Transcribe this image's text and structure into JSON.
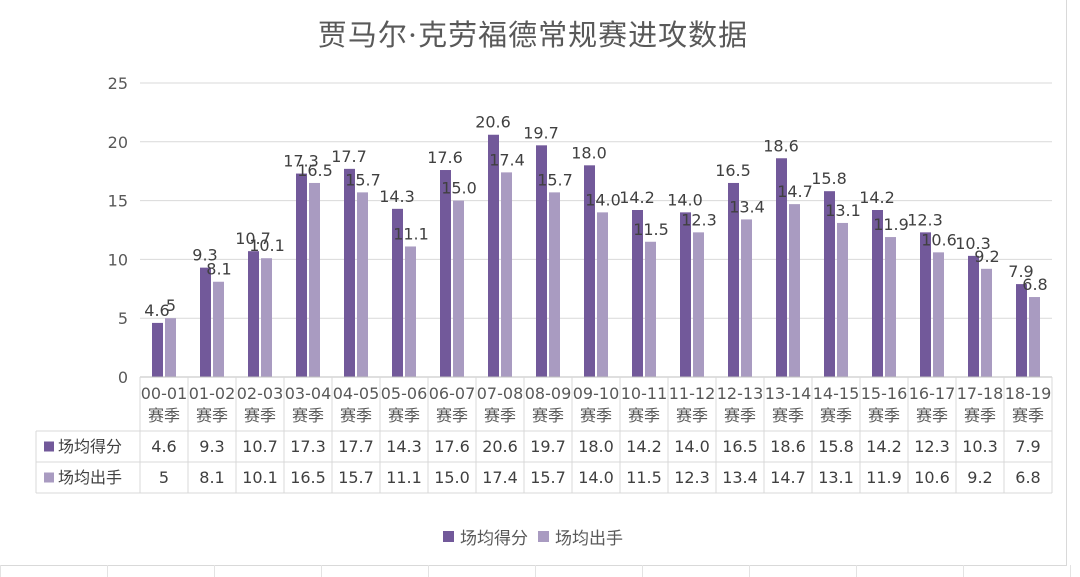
{
  "chart_data": {
    "type": "bar",
    "title": "贾马尔·克劳福德常规赛进攻数据",
    "categories": [
      [
        "00-01",
        "赛季"
      ],
      [
        "01-02",
        "赛季"
      ],
      [
        "02-03",
        "赛季"
      ],
      [
        "03-04",
        "赛季"
      ],
      [
        "04-05",
        "赛季"
      ],
      [
        "05-06",
        "赛季"
      ],
      [
        "06-07",
        "赛季"
      ],
      [
        "07-08",
        "赛季"
      ],
      [
        "08-09",
        "赛季"
      ],
      [
        "09-10",
        "赛季"
      ],
      [
        "10-11",
        "赛季"
      ],
      [
        "11-12",
        "赛季"
      ],
      [
        "12-13",
        "赛季"
      ],
      [
        "13-14",
        "赛季"
      ],
      [
        "14-15",
        "赛季"
      ],
      [
        "15-16",
        "赛季"
      ],
      [
        "16-17",
        "赛季"
      ],
      [
        "17-18",
        "赛季"
      ],
      [
        "18-19",
        "赛季"
      ]
    ],
    "series": [
      {
        "name": "场均得分",
        "color": "#72599a",
        "values": [
          4.6,
          9.3,
          10.7,
          17.3,
          17.7,
          14.3,
          17.6,
          20.6,
          19.7,
          18.0,
          14.2,
          14.0,
          16.5,
          18.6,
          15.8,
          14.2,
          12.3,
          10.3,
          7.9
        ],
        "labels": [
          "4.6",
          "9.3",
          "10.7",
          "17.3",
          "17.7",
          "14.3",
          "17.6",
          "20.6",
          "19.7",
          "18.0",
          "14.2",
          "14.0",
          "16.5",
          "18.6",
          "15.8",
          "14.2",
          "12.3",
          "10.3",
          "7.9"
        ]
      },
      {
        "name": "场均出手",
        "color": "#a99bc1",
        "values": [
          5,
          8.1,
          10.1,
          16.5,
          15.7,
          11.1,
          15.0,
          17.4,
          15.7,
          14.0,
          11.5,
          12.3,
          13.4,
          14.7,
          13.1,
          11.9,
          10.6,
          9.2,
          6.8
        ],
        "labels": [
          "5",
          "8.1",
          "10.1",
          "16.5",
          "15.7",
          "11.1",
          "15.0",
          "17.4",
          "15.7",
          "14.0",
          "11.5",
          "12.3",
          "13.4",
          "14.7",
          "13.1",
          "11.9",
          "10.6",
          "9.2",
          "6.8"
        ]
      }
    ],
    "ylim": [
      0,
      25
    ],
    "yticks": [
      "0",
      "5",
      "10",
      "15",
      "20",
      "25"
    ],
    "grid": true,
    "legend": "bottom",
    "data_table": true
  }
}
